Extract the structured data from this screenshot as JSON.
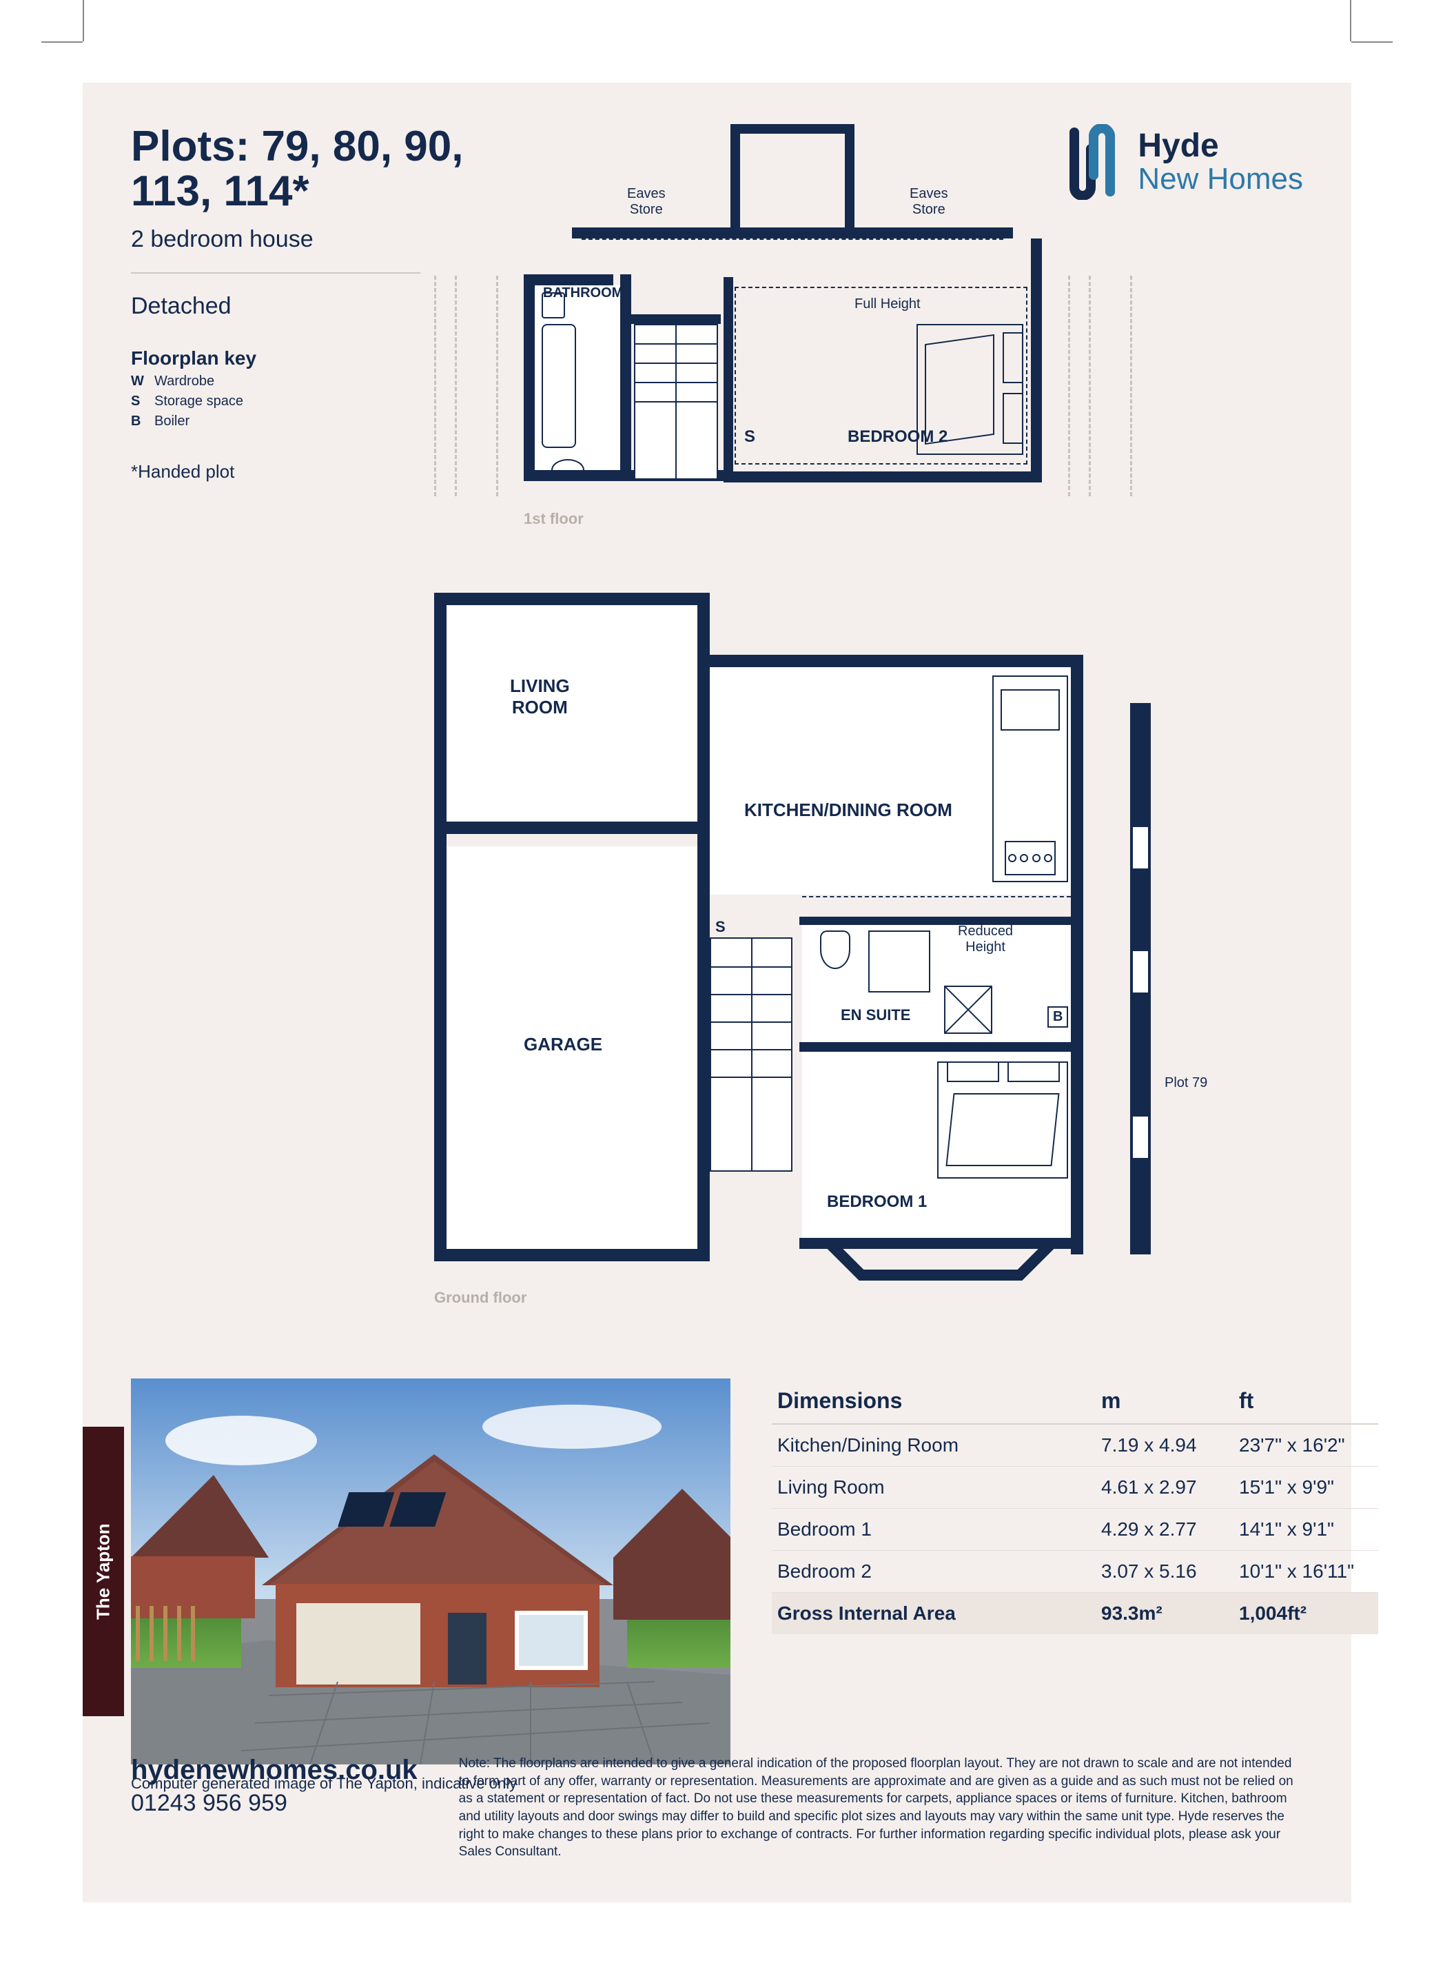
{
  "header": {
    "plots_title_l1": "Plots: 79, 80, 90,",
    "plots_title_l2": "113, 114*",
    "subtitle": "2 bedroom house",
    "detached": "Detached",
    "key_title": "Floorplan key",
    "keys": [
      {
        "k": "W",
        "v": "Wardrobe"
      },
      {
        "k": "S",
        "v": "Storage space"
      },
      {
        "k": "B",
        "v": "Boiler"
      }
    ],
    "handed": "*Handed plot"
  },
  "logo": {
    "line1": "Hyde",
    "line2": "New Homes"
  },
  "first_floor": {
    "label": "1st floor",
    "eaves_l": "Eaves\nStore",
    "eaves_r": "Eaves\nStore",
    "full_height": "Full Height",
    "bathroom": "BATHROOM",
    "s": "S",
    "bed2": "BEDROOM 2"
  },
  "ground_floor": {
    "label": "Ground floor",
    "living": "LIVING\nROOM",
    "kitchen": "KITCHEN/DINING ROOM",
    "garage": "GARAGE",
    "ensuite": "EN SUITE",
    "reduced": "Reduced\nHeight",
    "b": "B",
    "s": "S",
    "bed1": "BEDROOM 1",
    "plot_side": "Plot 79"
  },
  "photo": {
    "tab": "The Yapton",
    "caption": "Computer generated image of The Yapton, indicative only"
  },
  "dimensions": {
    "title": "Dimensions",
    "col_m": "m",
    "col_ft": "ft",
    "rows": [
      {
        "room": "Kitchen/Dining Room",
        "m": "7.19 x 4.94",
        "ft": "23'7\" x 16'2\""
      },
      {
        "room": "Living Room",
        "m": "4.61 x 2.97",
        "ft": "15'1\" x 9'9\""
      },
      {
        "room": "Bedroom 1",
        "m": "4.29 x 2.77",
        "ft": "14'1\" x 9'1\""
      },
      {
        "room": "Bedroom 2",
        "m": "3.07 x 5.16",
        "ft": "10'1\" x 16'11\""
      }
    ],
    "total_label": "Gross Internal Area",
    "total_m": "93.3m²",
    "total_ft": "1,004ft²"
  },
  "footer": {
    "url": "hydenewhomes.co.uk",
    "tel": "01243 956 959",
    "note": "Note: The floorplans are intended to give a general indication of the proposed floorplan layout. They are not drawn to scale and are not intended to form part of any offer, warranty or representation. Measurements are approximate and are given as a guide and as such must not be relied on as a statement or representation of fact. Do not use these measurements for carpets, appliance spaces or items of furniture. Kitchen, bathroom and utility layouts and door swings may differ to build and specific plot sizes and layouts may vary within the same unit type. Hyde reserves the right to make changes to these plans prior to exchange of contracts. For further information regarding specific individual plots, please ask your Sales Consultant."
  },
  "colors": {
    "navy": "#15294d",
    "cream": "#f4efec",
    "teal": "#2d79a8",
    "maroon": "#401319"
  }
}
